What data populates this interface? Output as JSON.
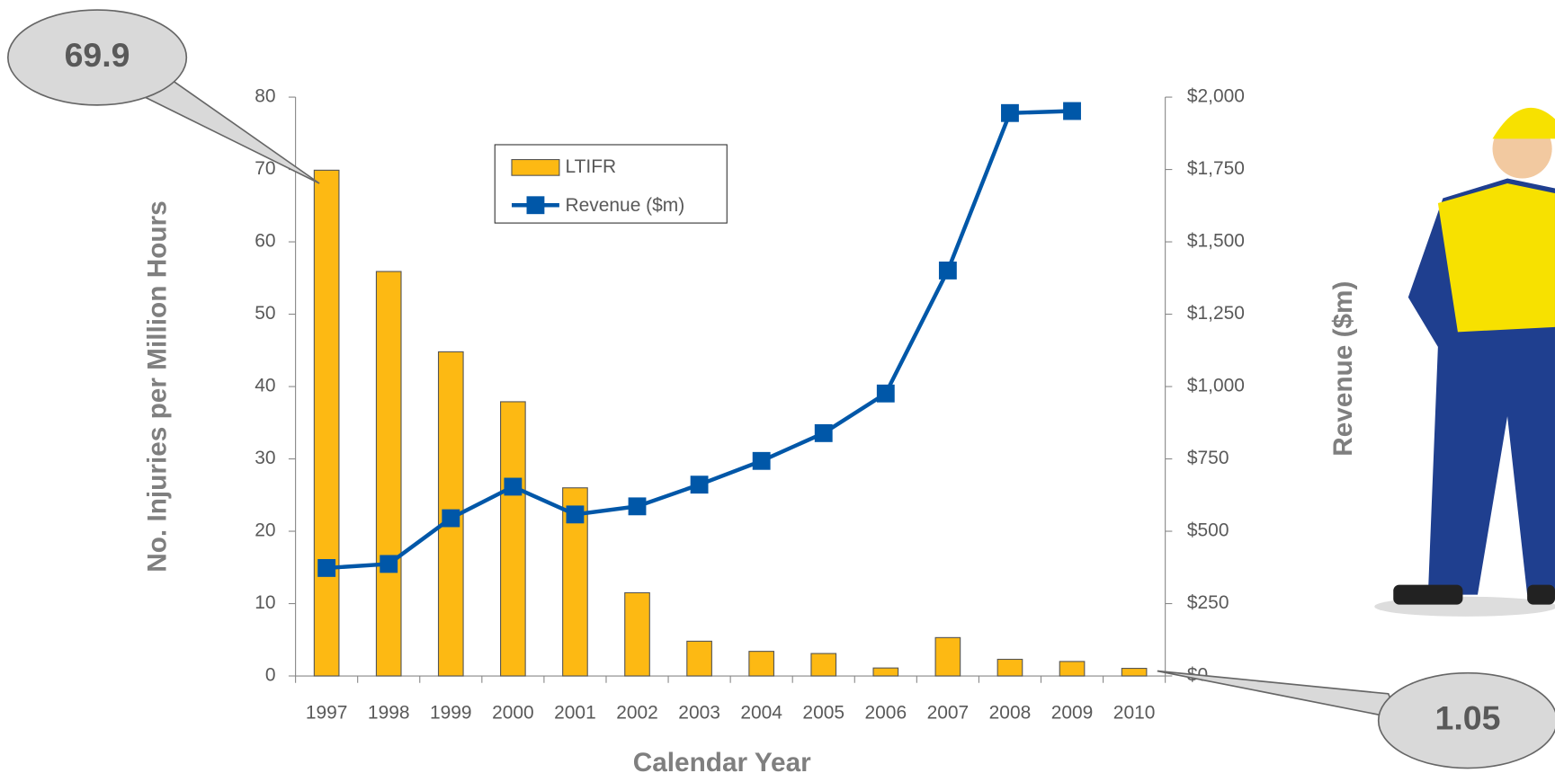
{
  "chart_data": {
    "type": "bar-line",
    "categories": [
      "1997",
      "1998",
      "1999",
      "2000",
      "2001",
      "2002",
      "2003",
      "2004",
      "2005",
      "2006",
      "2007",
      "2008",
      "2009",
      "2010"
    ],
    "series": [
      {
        "name": "LTIFR",
        "color": "#fdb913",
        "values": [
          69.9,
          55.9,
          44.8,
          37.9,
          26.0,
          11.5,
          4.8,
          3.4,
          3.1,
          1.1,
          5.3,
          2.3,
          2.0,
          1.05
        ]
      },
      {
        "name": "Revenue ($m)",
        "color": "#0057a8",
        "axis": "y2",
        "values": [
          373,
          387,
          545,
          654,
          558,
          586,
          661,
          743,
          839,
          976,
          1401,
          1945,
          1952,
          null
        ]
      }
    ],
    "x_label": "Calendar Year",
    "y_label": "No. Injuries per Million Hours",
    "y2_label": "Revenue ($m)",
    "ylim": [
      0,
      80
    ],
    "yticks": [
      0,
      10,
      20,
      30,
      40,
      50,
      60,
      70,
      80
    ],
    "y2lim": [
      0,
      2000
    ],
    "y2ticks": [
      {
        "value": 0,
        "label": "$0"
      },
      {
        "value": 250,
        "label": "$250"
      },
      {
        "value": 500,
        "label": "$500"
      },
      {
        "value": 750,
        "label": "$750"
      },
      {
        "value": 1000,
        "label": "$1,000"
      },
      {
        "value": 1250,
        "label": "$1,250"
      },
      {
        "value": 1500,
        "label": "$1,500"
      },
      {
        "value": 1750,
        "label": "$1,750"
      },
      {
        "value": 2000,
        "label": "$2,000"
      }
    ],
    "annotations": [
      "69.9",
      "1.05"
    ]
  }
}
